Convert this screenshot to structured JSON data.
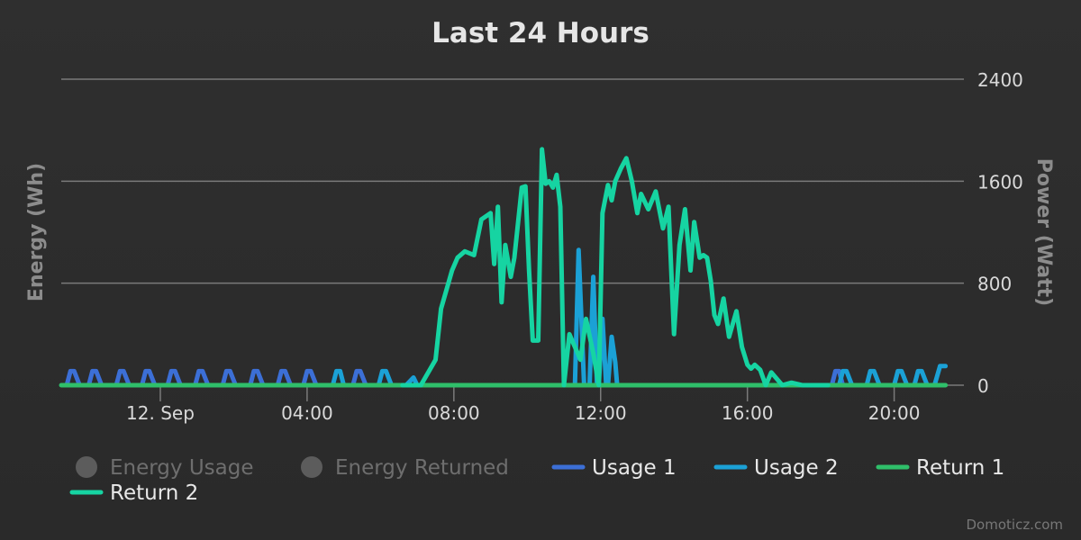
{
  "chart_data": {
    "type": "line",
    "title": "Last 24 Hours",
    "ylabel_left": "Energy (Wh)",
    "ylabel_right": "Power (Watt)",
    "x_tick_labels": [
      "12. Sep",
      "04:00",
      "08:00",
      "12:00",
      "16:00",
      "20:00"
    ],
    "x_tick_hours": [
      0,
      4,
      8,
      12,
      16,
      20
    ],
    "x_range_hours": [
      -2.7,
      21.9
    ],
    "y_right_ticks": [
      0,
      800,
      1600,
      2400
    ],
    "y_right_range": [
      0,
      2400
    ],
    "grid": true,
    "legend_position": "bottom",
    "legend": [
      {
        "name": "Energy Usage",
        "marker": "circle",
        "active": false,
        "color": "#555555"
      },
      {
        "name": "Energy Returned",
        "marker": "circle",
        "active": false,
        "color": "#555555"
      },
      {
        "name": "Usage 1",
        "marker": "line",
        "active": true,
        "color": "#3c6fd6"
      },
      {
        "name": "Usage 2",
        "marker": "line",
        "active": true,
        "color": "#1ba1d6"
      },
      {
        "name": "Return 1",
        "marker": "line",
        "active": true,
        "color": "#2fbf6a"
      },
      {
        "name": "Return 2",
        "marker": "line",
        "active": true,
        "color": "#16d4a2"
      }
    ],
    "series": [
      {
        "name": "Usage 1",
        "color": "#3c6fd6",
        "x": [
          -2.55,
          -2.45,
          -2.35,
          -2.2,
          -1.95,
          -1.85,
          -1.75,
          -1.6,
          -1.2,
          -1.1,
          -1.0,
          -0.85,
          -0.5,
          -0.4,
          -0.3,
          -0.15,
          0.2,
          0.3,
          0.4,
          0.55,
          0.95,
          1.05,
          1.15,
          1.3,
          1.7,
          1.8,
          1.9,
          2.05,
          2.45,
          2.55,
          2.65,
          2.8,
          3.2,
          3.3,
          3.4,
          3.55,
          3.9,
          4.0,
          4.1,
          4.25,
          5.25,
          5.35,
          5.45,
          5.6,
          5.75,
          11.3,
          11.9,
          12.45,
          18.0,
          18.3,
          18.4,
          18.5,
          18.6,
          21.0
        ],
        "y": [
          0,
          110,
          110,
          0,
          0,
          110,
          110,
          0,
          0,
          110,
          110,
          0,
          0,
          110,
          110,
          0,
          0,
          110,
          110,
          0,
          0,
          110,
          110,
          0,
          0,
          110,
          110,
          0,
          0,
          110,
          110,
          0,
          0,
          110,
          110,
          0,
          0,
          110,
          110,
          0,
          0,
          110,
          110,
          0,
          0,
          0,
          0,
          0,
          0,
          0,
          110,
          110,
          0,
          0
        ]
      },
      {
        "name": "Usage 2",
        "color": "#1ba1d6",
        "x": [
          4.7,
          4.8,
          4.9,
          5.0,
          5.95,
          6.05,
          6.15,
          6.3,
          6.7,
          6.9,
          7.0,
          11.0,
          11.3,
          11.4,
          11.55,
          11.7,
          11.8,
          11.9,
          11.95,
          12.05,
          12.15,
          12.2,
          12.3,
          12.4,
          12.45,
          18.0,
          18.5,
          18.6,
          18.7,
          18.85,
          19.25,
          19.35,
          19.45,
          19.6,
          20.0,
          20.1,
          20.2,
          20.35,
          20.55,
          20.65,
          20.75,
          20.9,
          21.1,
          21.25,
          21.4
        ],
        "y": [
          0,
          110,
          110,
          0,
          0,
          110,
          110,
          0,
          0,
          60,
          0,
          0,
          0,
          1060,
          0,
          0,
          850,
          0,
          0,
          520,
          0,
          0,
          380,
          180,
          0,
          0,
          0,
          110,
          110,
          0,
          0,
          110,
          110,
          0,
          0,
          110,
          110,
          0,
          0,
          110,
          110,
          0,
          0,
          150,
          150
        ]
      },
      {
        "name": "Return 1",
        "color": "#2fbf6a",
        "x": [
          -2.7,
          21.4
        ],
        "y": [
          0,
          0
        ]
      },
      {
        "name": "Return 2",
        "color": "#16d4a2",
        "x": [
          6.6,
          7.1,
          7.5,
          7.65,
          7.8,
          7.95,
          8.1,
          8.3,
          8.55,
          8.75,
          9.0,
          9.1,
          9.2,
          9.3,
          9.4,
          9.55,
          9.65,
          9.85,
          9.95,
          10.05,
          10.15,
          10.3,
          10.4,
          10.5,
          10.6,
          10.7,
          10.8,
          10.9,
          11.0,
          11.15,
          11.3,
          11.45,
          11.6,
          11.8,
          11.95,
          12.05,
          12.2,
          12.3,
          12.4,
          12.55,
          12.7,
          12.85,
          13.0,
          13.1,
          13.3,
          13.5,
          13.7,
          13.85,
          14.0,
          14.15,
          14.3,
          14.45,
          14.55,
          14.7,
          14.8,
          14.9,
          15.0,
          15.1,
          15.2,
          15.35,
          15.5,
          15.7,
          15.85,
          16.0,
          16.1,
          16.2,
          16.35,
          16.5,
          16.65,
          16.8,
          16.95,
          17.2,
          17.5,
          17.7,
          18.0,
          18.2
        ],
        "y": [
          0,
          0,
          200,
          600,
          750,
          900,
          1000,
          1050,
          1020,
          1300,
          1350,
          950,
          1400,
          650,
          1100,
          850,
          1000,
          1550,
          1560,
          900,
          350,
          350,
          1850,
          1580,
          1600,
          1550,
          1650,
          1400,
          0,
          400,
          300,
          200,
          520,
          250,
          0,
          1350,
          1570,
          1450,
          1600,
          1700,
          1780,
          1600,
          1350,
          1500,
          1380,
          1520,
          1230,
          1400,
          400,
          1100,
          1380,
          900,
          1280,
          1000,
          1020,
          1000,
          820,
          550,
          480,
          680,
          380,
          580,
          300,
          160,
          130,
          160,
          120,
          0,
          100,
          50,
          0,
          20,
          0,
          0,
          0,
          0
        ]
      }
    ]
  },
  "credit": "Domoticz.com"
}
